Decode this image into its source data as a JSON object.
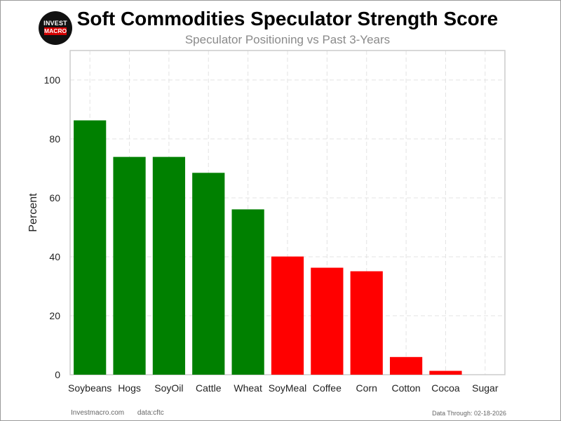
{
  "header": {
    "logo_top": "INVEST",
    "logo_bottom": "MACRO",
    "title": "Soft Commodities Speculator Strength Score",
    "subtitle": "Speculator Positioning vs Past 3-Years"
  },
  "footer": {
    "site": "Investmacro.com",
    "source": "data:cftc",
    "date": "Data Through: 02-18-2026"
  },
  "colors": {
    "above": "#008000",
    "below": "#ff0000",
    "grid": "#e3e3e3",
    "axis": "#cccccc"
  },
  "chart_data": {
    "type": "bar",
    "title": "Soft Commodities Speculator Strength Score",
    "subtitle": "Speculator Positioning vs Past 3-Years",
    "xlabel": "",
    "ylabel": "Percent",
    "ylim": [
      0,
      110
    ],
    "yticks": [
      0,
      20,
      40,
      60,
      80,
      100
    ],
    "grid": true,
    "categories": [
      "Soybeans",
      "Hogs",
      "SoyOil",
      "Cattle",
      "Wheat",
      "SoyMeal",
      "Coffee",
      "Corn",
      "Cotton",
      "Cocoa",
      "Sugar"
    ],
    "values": [
      86.3,
      73.9,
      73.9,
      68.5,
      56.1,
      40.1,
      36.3,
      35.1,
      6.0,
      1.3,
      0.0
    ],
    "bar_colors": [
      "green",
      "green",
      "green",
      "green",
      "green",
      "red",
      "red",
      "red",
      "red",
      "red",
      "red"
    ]
  }
}
